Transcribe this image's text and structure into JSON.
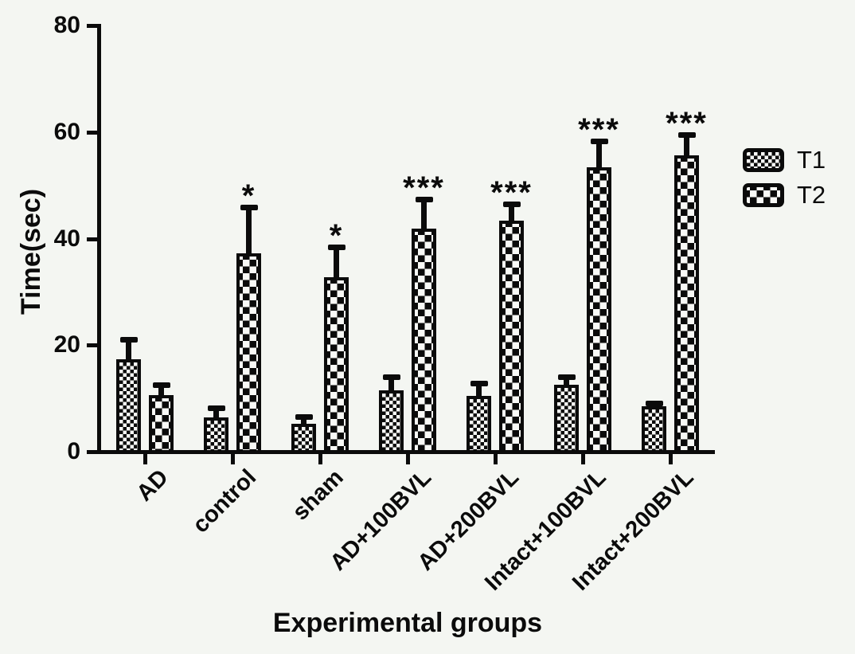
{
  "chart_data": {
    "type": "bar",
    "title": "",
    "xlabel": "Experimental groups",
    "ylabel": "Time(sec)",
    "ylim": [
      0,
      80
    ],
    "yticks": [
      0,
      20,
      40,
      60,
      80
    ],
    "grid": false,
    "legend_position": "right",
    "categories": [
      "AD",
      "control",
      "sham",
      "AD+100BVL",
      "AD+200BVL",
      "Intact+100BVL",
      "Intact+200BVL"
    ],
    "series": [
      {
        "name": "T1",
        "pattern": "fine-checker",
        "values": [
          17.3,
          6.4,
          5.2,
          11.5,
          10.5,
          12.6,
          8.5
        ],
        "errors": [
          4.2,
          2.3,
          1.8,
          3.0,
          2.8,
          1.9,
          1.1
        ]
      },
      {
        "name": "T2",
        "pattern": "coarse-checker",
        "values": [
          10.6,
          37.2,
          32.8,
          41.8,
          43.4,
          53.4,
          55.7
        ],
        "errors": [
          2.4,
          9.2,
          6.1,
          6.1,
          3.6,
          5.3,
          4.2
        ]
      }
    ],
    "significance": {
      "on_series": "T2",
      "labels": [
        "",
        "*",
        "*",
        "***",
        "***",
        "***",
        "***"
      ]
    },
    "colors": {
      "foreground": "#0b0b0b",
      "background": "#f4f6f2"
    }
  },
  "legend": {
    "items": [
      {
        "label": "T1"
      },
      {
        "label": "T2"
      }
    ]
  }
}
